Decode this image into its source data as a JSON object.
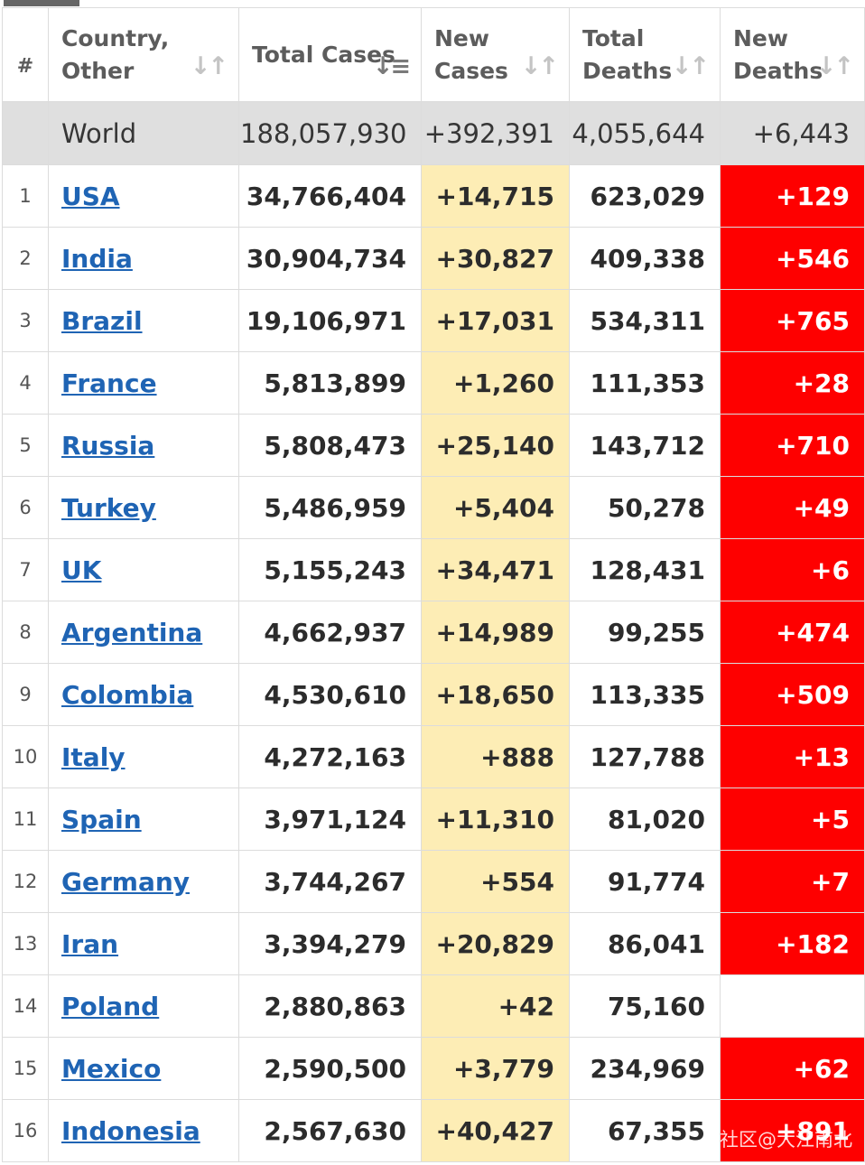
{
  "headers": {
    "rank": "#",
    "country": "Country, Other",
    "total_cases": "Total Cases",
    "new_cases": "New Cases",
    "total_deaths": "Total Deaths",
    "new_deaths": "New Deaths"
  },
  "world": {
    "name": "World",
    "total_cases": "188,057,930",
    "new_cases": "+392,391",
    "total_deaths": "4,055,644",
    "new_deaths": "+6,443"
  },
  "rows": [
    {
      "rank": "1",
      "country": "USA",
      "total_cases": "34,766,404",
      "new_cases": "+14,715",
      "total_deaths": "623,029",
      "new_deaths": "+129"
    },
    {
      "rank": "2",
      "country": "India",
      "total_cases": "30,904,734",
      "new_cases": "+30,827",
      "total_deaths": "409,338",
      "new_deaths": "+546"
    },
    {
      "rank": "3",
      "country": "Brazil",
      "total_cases": "19,106,971",
      "new_cases": "+17,031",
      "total_deaths": "534,311",
      "new_deaths": "+765"
    },
    {
      "rank": "4",
      "country": "France",
      "total_cases": "5,813,899",
      "new_cases": "+1,260",
      "total_deaths": "111,353",
      "new_deaths": "+28"
    },
    {
      "rank": "5",
      "country": "Russia",
      "total_cases": "5,808,473",
      "new_cases": "+25,140",
      "total_deaths": "143,712",
      "new_deaths": "+710"
    },
    {
      "rank": "6",
      "country": "Turkey",
      "total_cases": "5,486,959",
      "new_cases": "+5,404",
      "total_deaths": "50,278",
      "new_deaths": "+49"
    },
    {
      "rank": "7",
      "country": "UK",
      "total_cases": "5,155,243",
      "new_cases": "+34,471",
      "total_deaths": "128,431",
      "new_deaths": "+6"
    },
    {
      "rank": "8",
      "country": "Argentina",
      "total_cases": "4,662,937",
      "new_cases": "+14,989",
      "total_deaths": "99,255",
      "new_deaths": "+474"
    },
    {
      "rank": "9",
      "country": "Colombia",
      "total_cases": "4,530,610",
      "new_cases": "+18,650",
      "total_deaths": "113,335",
      "new_deaths": "+509"
    },
    {
      "rank": "10",
      "country": "Italy",
      "total_cases": "4,272,163",
      "new_cases": "+888",
      "total_deaths": "127,788",
      "new_deaths": "+13"
    },
    {
      "rank": "11",
      "country": "Spain",
      "total_cases": "3,971,124",
      "new_cases": "+11,310",
      "total_deaths": "81,020",
      "new_deaths": "+5"
    },
    {
      "rank": "12",
      "country": "Germany",
      "total_cases": "3,744,267",
      "new_cases": "+554",
      "total_deaths": "91,774",
      "new_deaths": "+7"
    },
    {
      "rank": "13",
      "country": "Iran",
      "total_cases": "3,394,279",
      "new_cases": "+20,829",
      "total_deaths": "86,041",
      "new_deaths": "+182"
    },
    {
      "rank": "14",
      "country": "Poland",
      "total_cases": "2,880,863",
      "new_cases": "+42",
      "total_deaths": "75,160",
      "new_deaths": ""
    },
    {
      "rank": "15",
      "country": "Mexico",
      "total_cases": "2,590,500",
      "new_cases": "+3,779",
      "total_deaths": "234,969",
      "new_deaths": "+62"
    },
    {
      "rank": "16",
      "country": "Indonesia",
      "total_cases": "2,567,630",
      "new_cases": "+40,427",
      "total_deaths": "67,355",
      "new_deaths": "+891"
    }
  ],
  "watermark": "社区@大江南北",
  "icons": {
    "sort_inactive": "sort-arrows-icon",
    "sort_active": "sort-descending-icon"
  },
  "colors": {
    "new_cases_bg": "#fdedb5",
    "new_deaths_bg": "#fe0000",
    "link": "#1f64b4",
    "world_bg": "#dfdfdf"
  }
}
